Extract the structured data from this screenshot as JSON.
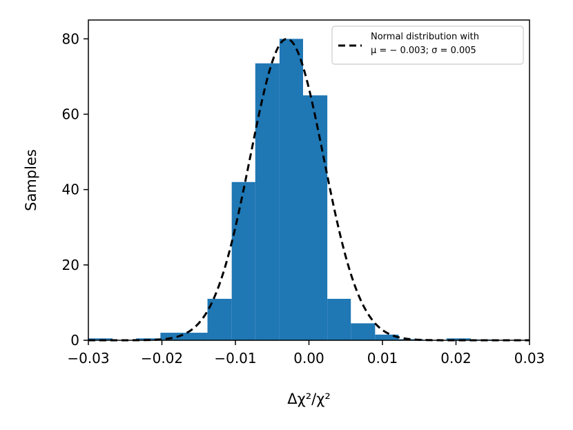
{
  "chart_data": {
    "type": "bar",
    "xlabel": "Δχ²/χ²",
    "ylabel": "Samples",
    "xlim": [
      -0.03,
      0.03
    ],
    "ylim": [
      0,
      85
    ],
    "xticks": [
      "−0.03",
      "−0.02",
      "−0.01",
      "0.00",
      "0.01",
      "0.02",
      "0.03"
    ],
    "xtick_values": [
      -0.03,
      -0.02,
      -0.01,
      0.0,
      0.01,
      0.02,
      0.03
    ],
    "yticks": [
      "0",
      "20",
      "40",
      "60",
      "80"
    ],
    "ytick_values": [
      0,
      20,
      40,
      60,
      80
    ],
    "grid": false,
    "bar_color": "#1f77b4",
    "histogram_bins": [
      {
        "x0": -0.03,
        "x1": -0.0267,
        "value": 0.5
      },
      {
        "x0": -0.0267,
        "x1": -0.0235,
        "value": 0.0
      },
      {
        "x0": -0.0235,
        "x1": -0.0202,
        "value": 0.5
      },
      {
        "x0": -0.0202,
        "x1": -0.017,
        "value": 2.0
      },
      {
        "x0": -0.017,
        "x1": -0.0138,
        "value": 2.0
      },
      {
        "x0": -0.0138,
        "x1": -0.0105,
        "value": 11.0
      },
      {
        "x0": -0.0105,
        "x1": -0.0073,
        "value": 42.0
      },
      {
        "x0": -0.0073,
        "x1": -0.004,
        "value": 73.5
      },
      {
        "x0": -0.004,
        "x1": -0.0008,
        "value": 80.0
      },
      {
        "x0": -0.0008,
        "x1": 0.0025,
        "value": 65.0
      },
      {
        "x0": 0.0025,
        "x1": 0.0057,
        "value": 11.0
      },
      {
        "x0": 0.0057,
        "x1": 0.009,
        "value": 4.5
      },
      {
        "x0": 0.009,
        "x1": 0.0122,
        "value": 1.5
      },
      {
        "x0": 0.0122,
        "x1": 0.0155,
        "value": 0.3
      },
      {
        "x0": 0.0155,
        "x1": 0.0187,
        "value": 0.0
      },
      {
        "x0": 0.0187,
        "x1": 0.022,
        "value": 0.5
      },
      {
        "x0": 0.022,
        "x1": 0.0252,
        "value": 0.2
      },
      {
        "x0": 0.0252,
        "x1": 0.03,
        "value": 0.0
      }
    ],
    "series": [
      {
        "name": "Normal distribution with μ = −0.003; σ = 0.005",
        "type": "line",
        "style": "dashed",
        "color": "#000000",
        "mu": -0.003,
        "sigma": 0.005,
        "peak": 80
      }
    ],
    "legend": {
      "position": "top-right",
      "line1": "Normal distribution with",
      "line2": "μ = − 0.003; σ = 0.005"
    }
  }
}
